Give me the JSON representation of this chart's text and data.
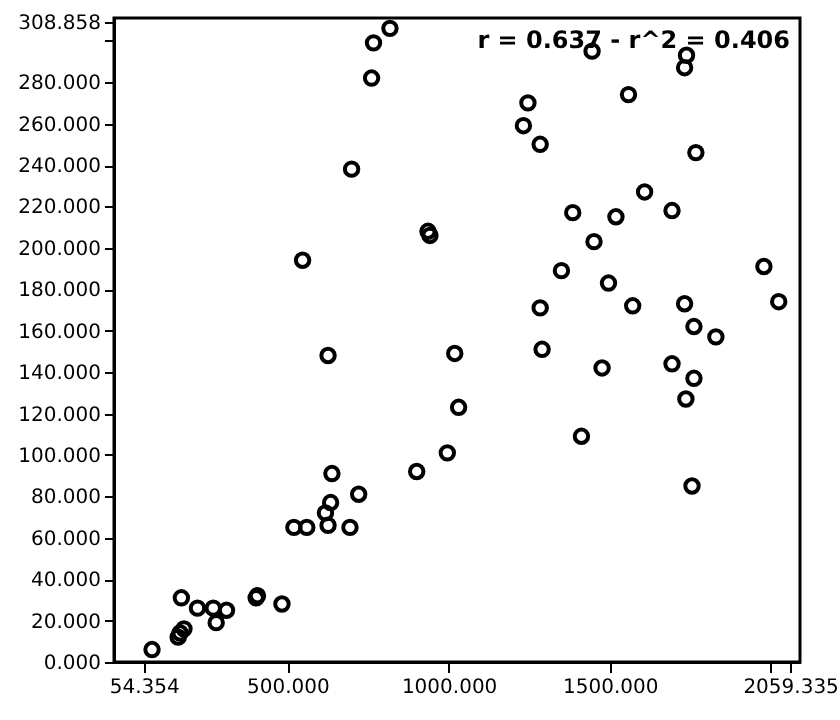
{
  "chart_data": {
    "type": "scatter",
    "annotations": [
      "r = 0.637 - r^2 = 0.406"
    ],
    "x": [
      818,
      767,
      761,
      699,
      936,
      942,
      547,
      626,
      1019,
      1445,
      1738,
      1732,
      1558,
      1246,
      1232,
      1284,
      1767,
      1608,
      1385,
      1519,
      1693,
      1451,
      1350,
      1496,
      1978,
      1284,
      1571,
      1732,
      2024,
      1761,
      1829,
      1290,
      1476,
      1693,
      1761,
      1736,
      1031,
      1412,
      996,
      1755,
      901,
      638,
      721,
      634,
      618,
      626,
      520,
      560,
      694,
      171,
      221,
      270,
      311,
      279,
      407,
      403,
      483,
      179,
      167,
      161,
      80
    ],
    "values": [
      306,
      299,
      282,
      238,
      208,
      206,
      194,
      148,
      149,
      295,
      293,
      287,
      274,
      270,
      259,
      250,
      246,
      227,
      217,
      215,
      218,
      203,
      189,
      183,
      191,
      171,
      172,
      173,
      174,
      162,
      157,
      151,
      142,
      144,
      137,
      127,
      123,
      109,
      101,
      85,
      92,
      91,
      81,
      77,
      72,
      66,
      65,
      65,
      65,
      31,
      26,
      26,
      25,
      19,
      32,
      31,
      28,
      16,
      14,
      12,
      6
    ],
    "color": "#000000",
    "marker": "circle",
    "grid": false,
    "xlim": [
      -38,
      2090
    ],
    "ylim": [
      0,
      311
    ],
    "xticks": [
      {
        "value": 54.354,
        "label": "54.354"
      },
      {
        "value": 500,
        "label": "500.000"
      },
      {
        "value": 1000,
        "label": "1000.000"
      },
      {
        "value": 1500,
        "label": "1500.000"
      },
      {
        "value": 2000,
        "label": null
      },
      {
        "value": 2059.335,
        "label": "2059.335"
      }
    ],
    "yticks": [
      {
        "value": 0,
        "label": "0.000"
      },
      {
        "value": 20,
        "label": "20.000"
      },
      {
        "value": 40,
        "label": "40.000"
      },
      {
        "value": 60,
        "label": "60.000"
      },
      {
        "value": 80,
        "label": "80.000"
      },
      {
        "value": 100,
        "label": "100.000"
      },
      {
        "value": 120,
        "label": "120.000"
      },
      {
        "value": 140,
        "label": "140.000"
      },
      {
        "value": 160,
        "label": "160.000"
      },
      {
        "value": 180,
        "label": "180.000"
      },
      {
        "value": 200,
        "label": "200.000"
      },
      {
        "value": 220,
        "label": "220.000"
      },
      {
        "value": 240,
        "label": "240.000"
      },
      {
        "value": 260,
        "label": "260.000"
      },
      {
        "value": 280,
        "label": "280.000"
      },
      {
        "value": 300,
        "label": null
      },
      {
        "value": 308.858,
        "label": "308.858"
      }
    ]
  }
}
